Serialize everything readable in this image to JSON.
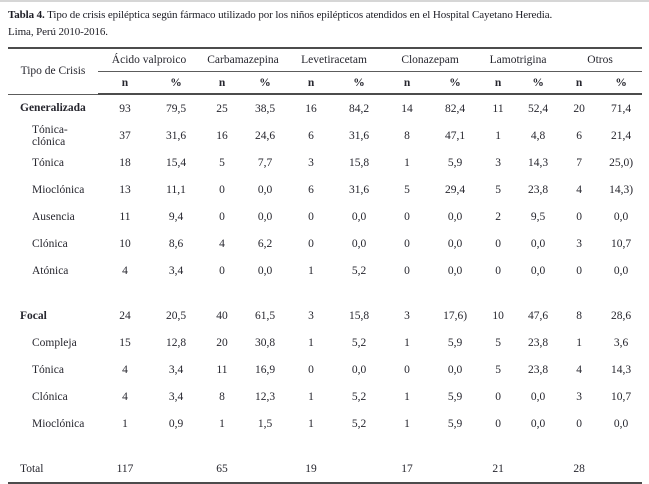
{
  "page": {
    "title_bold": "Tabla 4.",
    "title_line1_rest": " Tipo de crisis epiléptica según fármaco utilizado por los niños epilépticos atendidos en el Hospital Cayetano Heredia.",
    "title_line2": "Lima, Perú 2010-2016."
  },
  "colors": {
    "rule": "#4c4c4c",
    "text": "#26262e",
    "background": "#ffffff"
  },
  "table": {
    "corner_header": "Tipo de Crisis",
    "drug_groups": [
      "Ácido valproico",
      "Carbamazepina",
      "Levetiracetam",
      "Clonazepam",
      "Lamotrigina",
      "Otros"
    ],
    "subheaders": [
      "n",
      "%"
    ],
    "rows": [
      {
        "type": "data",
        "label": "Generalizada",
        "bold": true,
        "indent": false,
        "values": [
          "93",
          "79,5",
          "25",
          "38,5",
          "16",
          "84,2",
          "14",
          "82,4",
          "11",
          "52,4",
          "20",
          "71,4"
        ]
      },
      {
        "type": "data",
        "label": "Tónica-clónica",
        "bold": false,
        "indent": true,
        "values": [
          "37",
          "31,6",
          "16",
          "24,6",
          "6",
          "31,6",
          "8",
          "47,1",
          "1",
          "4,8",
          "6",
          "21,4"
        ]
      },
      {
        "type": "data",
        "label": "Tónica",
        "bold": false,
        "indent": true,
        "values": [
          "18",
          "15,4",
          "5",
          "7,7",
          "3",
          "15,8",
          "1",
          "5,9",
          "3",
          "14,3",
          "7",
          "25,0)"
        ]
      },
      {
        "type": "data",
        "label": "Mioclónica",
        "bold": false,
        "indent": true,
        "values": [
          "13",
          "11,1",
          "0",
          "0,0",
          "6",
          "31,6",
          "5",
          "29,4",
          "5",
          "23,8",
          "4",
          "14,3)"
        ]
      },
      {
        "type": "data",
        "label": "Ausencia",
        "bold": false,
        "indent": true,
        "values": [
          "11",
          "9,4",
          "0",
          "0,0",
          "0",
          "0,0",
          "0",
          "0,0",
          "2",
          "9,5",
          "0",
          "0,0"
        ]
      },
      {
        "type": "data",
        "label": "Clónica",
        "bold": false,
        "indent": true,
        "values": [
          "10",
          "8,6",
          "4",
          "6,2",
          "0",
          "0,0",
          "0",
          "0,0",
          "0",
          "0,0",
          "3",
          "10,7"
        ]
      },
      {
        "type": "data",
        "label": "Atónica",
        "bold": false,
        "indent": true,
        "values": [
          "4",
          "3,4",
          "0",
          "0,0",
          "1",
          "5,2",
          "0",
          "0,0",
          "0",
          "0,0",
          "0",
          "0,0"
        ]
      },
      {
        "type": "spacer"
      },
      {
        "type": "data",
        "label": "Focal",
        "bold": true,
        "indent": false,
        "values": [
          "24",
          "20,5",
          "40",
          "61,5",
          "3",
          "15,8",
          "3",
          "17,6)",
          "10",
          "47,6",
          "8",
          "28,6"
        ]
      },
      {
        "type": "data",
        "label": "Compleja",
        "bold": false,
        "indent": true,
        "values": [
          "15",
          "12,8",
          "20",
          "30,8",
          "1",
          "5,2",
          "1",
          "5,9",
          "5",
          "23,8",
          "1",
          "3,6"
        ]
      },
      {
        "type": "data",
        "label": "Tónica",
        "bold": false,
        "indent": true,
        "values": [
          "4",
          "3,4",
          "11",
          "16,9",
          "0",
          "0,0",
          "0",
          "0,0",
          "5",
          "23,8",
          "4",
          "14,3"
        ]
      },
      {
        "type": "data",
        "label": "Clónica",
        "bold": false,
        "indent": true,
        "values": [
          "4",
          "3,4",
          "8",
          "12,3",
          "1",
          "5,2",
          "1",
          "5,9",
          "0",
          "0,0",
          "3",
          "10,7"
        ]
      },
      {
        "type": "data",
        "label": "Mioclónica",
        "bold": false,
        "indent": true,
        "values": [
          "1",
          "0,9",
          "1",
          "1,5",
          "1",
          "5,2",
          "1",
          "5,9",
          "0",
          "0,0",
          "0",
          "0,0"
        ]
      },
      {
        "type": "spacer"
      },
      {
        "type": "data",
        "label": "Total",
        "bold": false,
        "indent": false,
        "values": [
          "117",
          "",
          "65",
          "",
          "19",
          "",
          "17",
          "",
          "21",
          "",
          "28",
          ""
        ]
      }
    ]
  }
}
